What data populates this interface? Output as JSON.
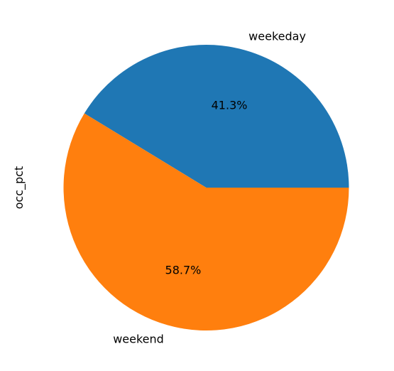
{
  "chart_data": {
    "type": "pie",
    "ylabel": "occ_pct",
    "start_angle_deg": 0,
    "direction": "counterclockwise",
    "legend": "none",
    "slices": [
      {
        "label": "weekeday",
        "value": 41.3,
        "pct_label": "41.3%",
        "color": "#1f77b4"
      },
      {
        "label": "weekend",
        "value": 58.7,
        "pct_label": "58.7%",
        "color": "#ff7f0e"
      }
    ]
  }
}
